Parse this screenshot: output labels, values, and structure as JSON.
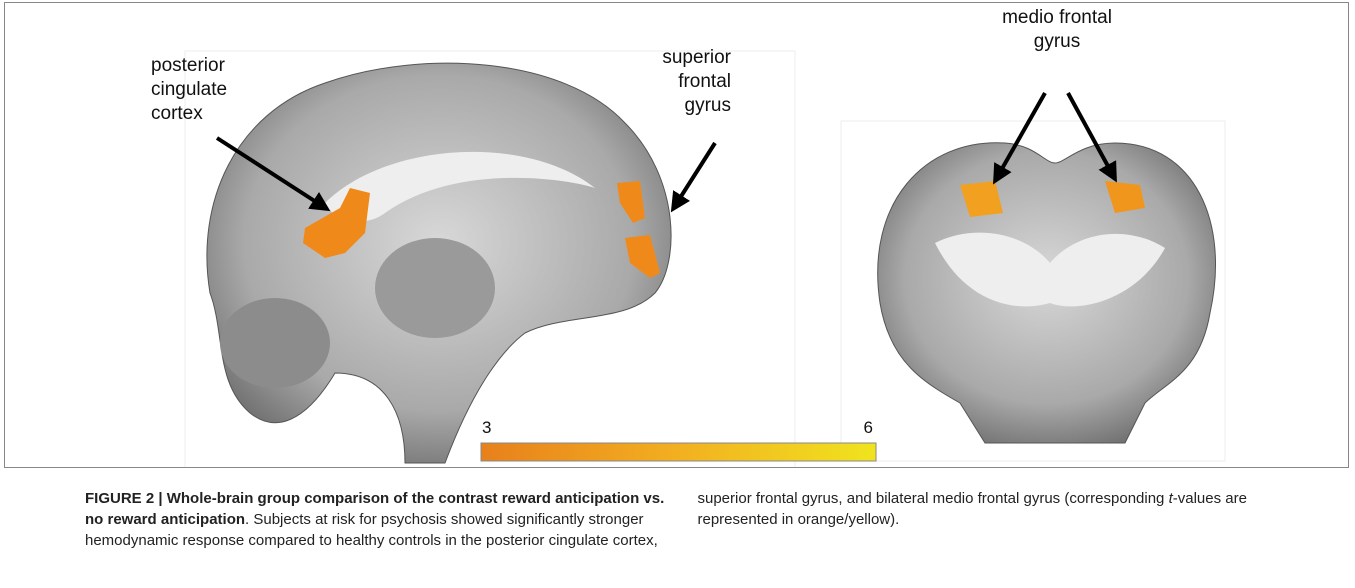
{
  "figure": {
    "labels": {
      "posterior_cingulate": [
        "posterior",
        "cingulate",
        "cortex"
      ],
      "superior_frontal": [
        "superior",
        "frontal",
        "gyrus"
      ],
      "medio_frontal": [
        "medio frontal",
        "gyrus"
      ]
    },
    "colorbar": {
      "min": "3",
      "max": "6"
    }
  },
  "caption": {
    "bold": "FIGURE 2 | Whole-brain group comparison of the contrast reward anticipation vs. no reward anticipation",
    "text1": ". Subjects at risk for psychosis showed significantly stronger hemodynamic response compared to healthy controls in the posterior cingulate cortex, superior frontal gyrus, and bilateral medio frontal gyrus (corresponding ",
    "t": "t",
    "text2": "-values are represented in orange/yellow)."
  }
}
